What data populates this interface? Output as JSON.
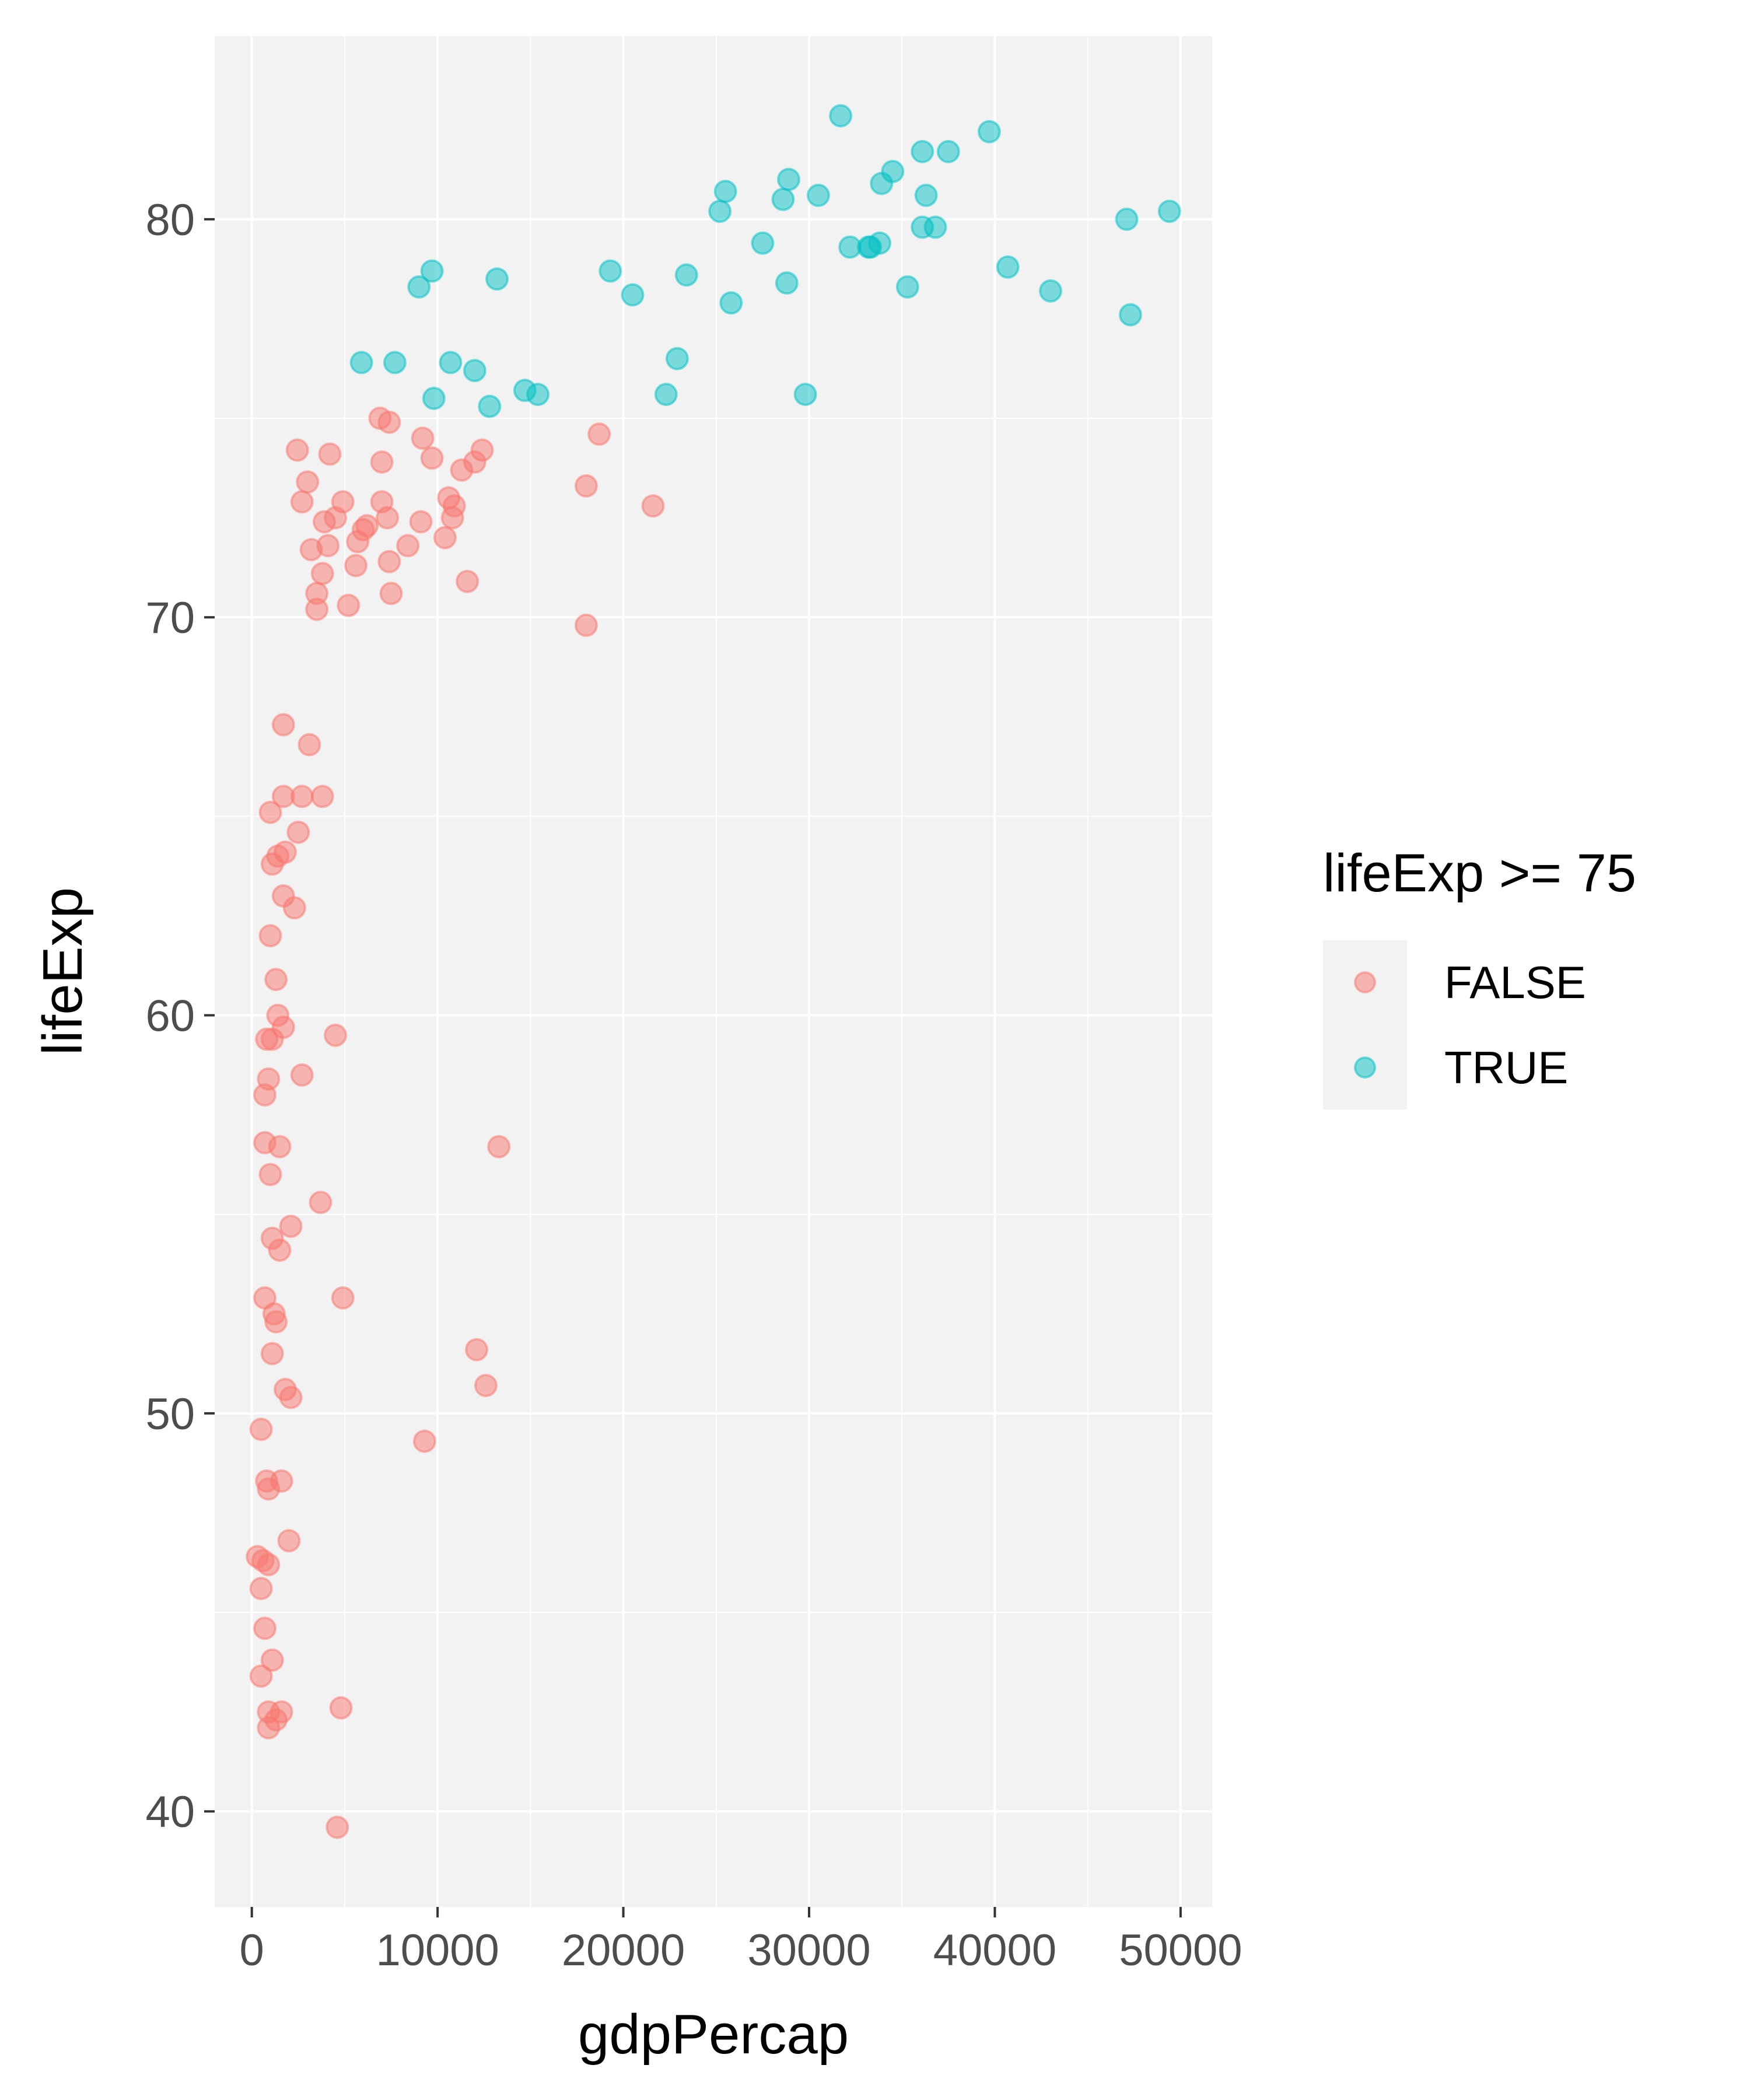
{
  "chart_data": {
    "type": "scatter",
    "title": "",
    "xlabel": "gdpPercap",
    "ylabel": "lifeExp",
    "xlim": [
      -2000,
      51700
    ],
    "ylim": [
      37.6,
      84.6
    ],
    "x_ticks": [
      0,
      10000,
      20000,
      30000,
      40000,
      50000
    ],
    "x_tick_labels": [
      "0",
      "10000",
      "20000",
      "30000",
      "40000",
      "50000"
    ],
    "y_ticks": [
      40,
      50,
      60,
      70,
      80
    ],
    "y_tick_labels": [
      "40",
      "50",
      "60",
      "70",
      "80"
    ],
    "grid": true,
    "point_alpha": 0.5,
    "legend": {
      "title": "lifeExp >= 75",
      "placement": "right",
      "entries": [
        {
          "label": "FALSE",
          "color": "#F8766D"
        },
        {
          "label": "TRUE",
          "color": "#00BFC4"
        }
      ]
    },
    "series": [
      {
        "name": "FALSE",
        "color": "#F8766D",
        "points": [
          [
            2450,
            74.2
          ],
          [
            4200,
            74.1
          ],
          [
            6900,
            75.0
          ],
          [
            7400,
            74.9
          ],
          [
            9200,
            74.5
          ],
          [
            9700,
            74.0
          ],
          [
            12400,
            74.2
          ],
          [
            11300,
            73.7
          ],
          [
            12000,
            73.9
          ],
          [
            18700,
            74.6
          ],
          [
            18000,
            73.3
          ],
          [
            3000,
            73.4
          ],
          [
            2700,
            72.9
          ],
          [
            4900,
            72.9
          ],
          [
            7000,
            73.9
          ],
          [
            7000,
            72.9
          ],
          [
            10600,
            73.0
          ],
          [
            10900,
            72.8
          ],
          [
            21600,
            72.8
          ],
          [
            3900,
            72.4
          ],
          [
            4500,
            72.5
          ],
          [
            6000,
            72.2
          ],
          [
            6200,
            72.3
          ],
          [
            7300,
            72.5
          ],
          [
            9100,
            72.4
          ],
          [
            10800,
            72.5
          ],
          [
            3200,
            71.7
          ],
          [
            4100,
            71.8
          ],
          [
            5700,
            71.9
          ],
          [
            8400,
            71.8
          ],
          [
            10400,
            72.0
          ],
          [
            5600,
            71.3
          ],
          [
            7400,
            71.4
          ],
          [
            3800,
            71.1
          ],
          [
            11600,
            70.9
          ],
          [
            3500,
            70.6
          ],
          [
            7500,
            70.6
          ],
          [
            3500,
            70.2
          ],
          [
            5200,
            70.3
          ],
          [
            18000,
            69.8
          ],
          [
            1700,
            67.3
          ],
          [
            3100,
            66.8
          ],
          [
            1700,
            65.5
          ],
          [
            2700,
            65.5
          ],
          [
            3800,
            65.5
          ],
          [
            1000,
            65.1
          ],
          [
            2500,
            64.6
          ],
          [
            1800,
            64.1
          ],
          [
            1400,
            64.0
          ],
          [
            1100,
            63.8
          ],
          [
            1700,
            63.0
          ],
          [
            2300,
            62.7
          ],
          [
            1000,
            62.0
          ],
          [
            1300,
            60.9
          ],
          [
            1400,
            60.0
          ],
          [
            1700,
            59.7
          ],
          [
            800,
            59.4
          ],
          [
            1100,
            59.4
          ],
          [
            4500,
            59.5
          ],
          [
            2700,
            58.5
          ],
          [
            900,
            58.4
          ],
          [
            700,
            58.0
          ],
          [
            700,
            56.8
          ],
          [
            1500,
            56.7
          ],
          [
            13300,
            56.7
          ],
          [
            1000,
            56.0
          ],
          [
            3700,
            55.3
          ],
          [
            2100,
            54.7
          ],
          [
            1100,
            54.4
          ],
          [
            1500,
            54.1
          ],
          [
            700,
            52.9
          ],
          [
            4900,
            52.9
          ],
          [
            1200,
            52.5
          ],
          [
            1300,
            52.3
          ],
          [
            1100,
            51.5
          ],
          [
            12100,
            51.6
          ],
          [
            1800,
            50.6
          ],
          [
            2100,
            50.4
          ],
          [
            12600,
            50.7
          ],
          [
            500,
            49.6
          ],
          [
            9300,
            49.3
          ],
          [
            800,
            48.3
          ],
          [
            1600,
            48.3
          ],
          [
            900,
            48.1
          ],
          [
            2000,
            46.8
          ],
          [
            300,
            46.4
          ],
          [
            600,
            46.3
          ],
          [
            900,
            46.2
          ],
          [
            500,
            45.6
          ],
          [
            700,
            44.6
          ],
          [
            1100,
            43.8
          ],
          [
            500,
            43.4
          ],
          [
            900,
            42.5
          ],
          [
            1300,
            42.3
          ],
          [
            1600,
            42.5
          ],
          [
            4800,
            42.6
          ],
          [
            900,
            42.1
          ],
          [
            4600,
            39.6
          ]
        ]
      },
      {
        "name": "TRUE",
        "color": "#00BFC4",
        "points": [
          [
            31700,
            82.6
          ],
          [
            39700,
            82.2
          ],
          [
            36100,
            81.7
          ],
          [
            37500,
            81.7
          ],
          [
            34500,
            81.2
          ],
          [
            33900,
            80.9
          ],
          [
            28900,
            81.0
          ],
          [
            25500,
            80.7
          ],
          [
            30500,
            80.6
          ],
          [
            28600,
            80.5
          ],
          [
            36300,
            80.6
          ],
          [
            25200,
            80.2
          ],
          [
            47100,
            80.0
          ],
          [
            49400,
            80.2
          ],
          [
            36100,
            79.8
          ],
          [
            36800,
            79.8
          ],
          [
            27500,
            79.4
          ],
          [
            32200,
            79.3
          ],
          [
            33200,
            79.3
          ],
          [
            33800,
            79.4
          ],
          [
            33300,
            79.3
          ],
          [
            40700,
            78.8
          ],
          [
            19300,
            78.7
          ],
          [
            23400,
            78.6
          ],
          [
            9700,
            78.7
          ],
          [
            13200,
            78.5
          ],
          [
            9000,
            78.3
          ],
          [
            20500,
            78.1
          ],
          [
            28800,
            78.4
          ],
          [
            35300,
            78.3
          ],
          [
            43000,
            78.2
          ],
          [
            25800,
            77.9
          ],
          [
            47300,
            77.6
          ],
          [
            5900,
            76.4
          ],
          [
            7700,
            76.4
          ],
          [
            10700,
            76.4
          ],
          [
            12000,
            76.2
          ],
          [
            22900,
            76.5
          ],
          [
            14700,
            75.7
          ],
          [
            15400,
            75.6
          ],
          [
            9800,
            75.5
          ],
          [
            12800,
            75.3
          ],
          [
            22300,
            75.6
          ],
          [
            29800,
            75.6
          ]
        ]
      }
    ]
  }
}
